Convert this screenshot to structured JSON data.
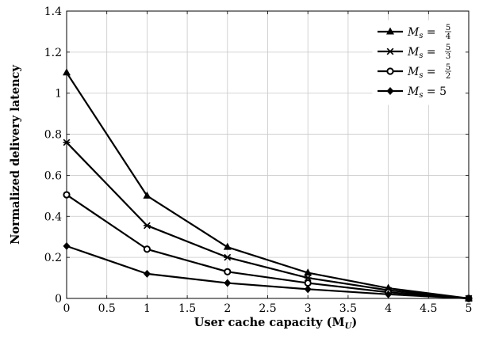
{
  "chart_data": {
    "type": "line",
    "title": "",
    "xlabel": "User cache capacity (M",
    "xlabel_sub": "U",
    "xlabel_tail": ")",
    "ylabel": "Normalized delivery latency",
    "xlim": [
      0,
      5
    ],
    "ylim": [
      0,
      1.4
    ],
    "xticks": [
      0,
      0.5,
      1,
      1.5,
      2,
      2.5,
      3,
      3.5,
      4,
      4.5,
      5
    ],
    "xtick_labels": [
      "0",
      "0.5",
      "1",
      "1.5",
      "2",
      "2.5",
      "3",
      "3.5",
      "4",
      "4.5",
      "5"
    ],
    "yticks": [
      0,
      0.2,
      0.4,
      0.6,
      0.8,
      1,
      1.2,
      1.4
    ],
    "ytick_labels": [
      "0",
      "0.2",
      "0.4",
      "0.6",
      "0.8",
      "1",
      "1.2",
      "1.4"
    ],
    "grid": true,
    "legend_position": "top-right",
    "x": [
      0,
      1,
      2,
      3,
      4,
      5
    ],
    "series": [
      {
        "name": "5/4",
        "marker": "triangle",
        "values": [
          1.1,
          0.5,
          0.25,
          0.125,
          0.05,
          0
        ]
      },
      {
        "name": "5/3",
        "marker": "star",
        "values": [
          0.76,
          0.355,
          0.2,
          0.1,
          0.04,
          0
        ]
      },
      {
        "name": "5/2",
        "marker": "circle",
        "values": [
          0.505,
          0.24,
          0.13,
          0.075,
          0.03,
          0
        ]
      },
      {
        "name": "5",
        "marker": "diamond",
        "values": [
          0.255,
          0.12,
          0.075,
          0.045,
          0.02,
          0
        ]
      }
    ],
    "legend": [
      {
        "var": "M",
        "sub": "s",
        "eq": " = ",
        "num": "5",
        "den": "4"
      },
      {
        "var": "M",
        "sub": "s",
        "eq": " = ",
        "num": "5",
        "den": "3"
      },
      {
        "var": "M",
        "sub": "s",
        "eq": " = ",
        "num": "5",
        "den": "2"
      },
      {
        "var": "M",
        "sub": "s",
        "eq": " = ",
        "whole": "5"
      }
    ]
  }
}
